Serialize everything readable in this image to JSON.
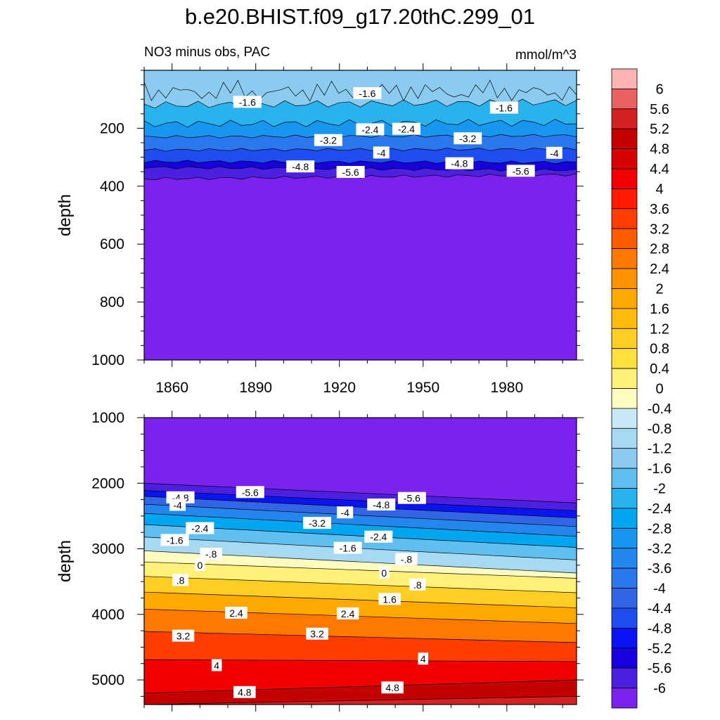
{
  "title": "b.e20.BHIST.f09_g17.20thC.299_01",
  "left_string": "NO3 minus obs, PAC",
  "right_string": "mmol/m^3",
  "chart_data": [
    {
      "type": "contour",
      "panel": "upper",
      "x": {
        "label": "",
        "range": [
          1850,
          2005
        ],
        "ticks": [
          1860,
          1890,
          1920,
          1950,
          1980
        ]
      },
      "y": {
        "label": "depth",
        "range": [
          0,
          1000
        ],
        "reversed": true,
        "ticks": [
          200,
          400,
          600,
          800,
          1000
        ]
      },
      "contour_levels": [
        -6,
        -5.6,
        -5.2,
        -4.8,
        -4.4,
        -4,
        -3.6,
        -3.2,
        -2.8,
        -2.4,
        -2,
        -1.6,
        -1.2,
        -0.8,
        -0.4,
        0,
        0.4,
        0.8,
        1.2,
        1.6,
        2,
        2.4,
        2.8,
        3.2,
        3.6,
        4,
        4.4,
        4.8,
        5.2,
        5.6,
        6
      ],
      "profile_depth_at": [
        {
          "level": -1.6,
          "depth_start": 120,
          "depth_end": 110
        },
        {
          "level": -2.4,
          "depth_start": 185,
          "depth_end": 180
        },
        {
          "level": -3.2,
          "depth_start": 230,
          "depth_end": 225
        },
        {
          "level": -4,
          "depth_start": 275,
          "depth_end": 272
        },
        {
          "level": -4.8,
          "depth_start": 315,
          "depth_end": 318
        },
        {
          "level": -5.6,
          "depth_start": 335,
          "depth_end": 345
        },
        {
          "level": -6,
          "depth_start": 375,
          "depth_end": 360
        }
      ],
      "contour_labels": [
        {
          "text": "-1.6",
          "x": 1887,
          "depth": 110
        },
        {
          "text": "-1.6",
          "x": 1930,
          "depth": 80
        },
        {
          "text": "-1.6",
          "x": 1979,
          "depth": 130
        },
        {
          "text": "-3.2",
          "x": 1916,
          "depth": 242
        },
        {
          "text": "-2.4",
          "x": 1931,
          "depth": 205
        },
        {
          "text": "-2.4",
          "x": 1944,
          "depth": 203
        },
        {
          "text": "-3.2",
          "x": 1966,
          "depth": 236
        },
        {
          "text": "-4",
          "x": 1935,
          "depth": 285
        },
        {
          "text": "-4",
          "x": 1997,
          "depth": 286
        },
        {
          "text": "-4.8",
          "x": 1906,
          "depth": 333
        },
        {
          "text": "-4.8",
          "x": 1963,
          "depth": 322
        },
        {
          "text": "-5.6",
          "x": 1924,
          "depth": 352
        },
        {
          "text": "-5.6",
          "x": 1985,
          "depth": 348
        }
      ]
    },
    {
      "type": "contour",
      "panel": "lower",
      "x": {
        "label": "",
        "range": [
          1850,
          2005
        ]
      },
      "y": {
        "label": "depth",
        "range": [
          1000,
          5375
        ],
        "reversed": true,
        "ticks": [
          1000,
          2000,
          3000,
          4000,
          5000
        ]
      },
      "profile_depth_at": [
        {
          "level": -6,
          "depth_start": 2000,
          "depth_end": 2300
        },
        {
          "level": -5.2,
          "depth_start": 2110,
          "depth_end": 2420
        },
        {
          "level": -4.4,
          "depth_start": 2200,
          "depth_end": 2530
        },
        {
          "level": -3.6,
          "depth_start": 2320,
          "depth_end": 2660
        },
        {
          "level": -2.8,
          "depth_start": 2460,
          "depth_end": 2810
        },
        {
          "level": -2,
          "depth_start": 2630,
          "depth_end": 2980
        },
        {
          "level": -1.2,
          "depth_start": 2820,
          "depth_end": 3170
        },
        {
          "level": -0.4,
          "depth_start": 3030,
          "depth_end": 3370
        },
        {
          "level": 0,
          "depth_start": 3200,
          "depth_end": 3450
        },
        {
          "level": 0.8,
          "depth_start": 3420,
          "depth_end": 3670
        },
        {
          "level": 1.6,
          "depth_start": 3660,
          "depth_end": 3900
        },
        {
          "level": 2.4,
          "depth_start": 3920,
          "depth_end": 4140
        },
        {
          "level": 3.2,
          "depth_start": 4260,
          "depth_end": 4430
        },
        {
          "level": 4,
          "depth_start": 4690,
          "depth_end": 4720
        },
        {
          "level": 4.8,
          "depth_start": 5200,
          "depth_end": 5000
        },
        {
          "level": 5.2,
          "depth_start": 5375,
          "depth_end": 5250
        }
      ],
      "contour_labels": [
        {
          "text": "-4.8",
          "x": 1863,
          "depth": 2220
        },
        {
          "text": "-5.6",
          "x": 1888,
          "depth": 2140
        },
        {
          "text": "-4",
          "x": 1862,
          "depth": 2335
        },
        {
          "text": "-4.8",
          "x": 1935,
          "depth": 2330
        },
        {
          "text": "-5.6",
          "x": 1946,
          "depth": 2230
        },
        {
          "text": "-4",
          "x": 1922,
          "depth": 2450
        },
        {
          "text": "-2.4",
          "x": 1870,
          "depth": 2690
        },
        {
          "text": "-3.2",
          "x": 1912,
          "depth": 2610
        },
        {
          "text": "-2.4",
          "x": 1934,
          "depth": 2820
        },
        {
          "text": "-1.6",
          "x": 1861,
          "depth": 2870
        },
        {
          "text": "-1.6",
          "x": 1923,
          "depth": 2990
        },
        {
          "text": "-.8",
          "x": 1874,
          "depth": 3080
        },
        {
          "text": "-.8",
          "x": 1944,
          "depth": 3160
        },
        {
          "text": "0",
          "x": 1870,
          "depth": 3250
        },
        {
          "text": "0",
          "x": 1936,
          "depth": 3370
        },
        {
          "text": ".8",
          "x": 1863,
          "depth": 3480
        },
        {
          "text": ".8",
          "x": 1948,
          "depth": 3550
        },
        {
          "text": "1.6",
          "x": 1938,
          "depth": 3770
        },
        {
          "text": "2.4",
          "x": 1883,
          "depth": 3980
        },
        {
          "text": "2.4",
          "x": 1923,
          "depth": 3990
        },
        {
          "text": "3.2",
          "x": 1864,
          "depth": 4330
        },
        {
          "text": "3.2",
          "x": 1912,
          "depth": 4300
        },
        {
          "text": "4",
          "x": 1876,
          "depth": 4780
        },
        {
          "text": "4",
          "x": 1950,
          "depth": 4680
        },
        {
          "text": "4.8",
          "x": 1886,
          "depth": 5190
        },
        {
          "text": "4.8",
          "x": 1939,
          "depth": 5120
        }
      ]
    }
  ],
  "colorbar": {
    "labels": [
      "6",
      "5.6",
      "5.2",
      "4.8",
      "4.4",
      "4",
      "3.6",
      "3.2",
      "2.8",
      "2.4",
      "2",
      "1.6",
      "1.2",
      "0.8",
      "0.4",
      "0",
      "-0.4",
      "-0.8",
      "-1.2",
      "-1.6",
      "-2",
      "-2.4",
      "-2.8",
      "-3.2",
      "-3.6",
      "-4",
      "-4.4",
      "-4.8",
      "-5.2",
      "-5.6",
      "-6"
    ],
    "colors": [
      "#ffb3b3",
      "#e86060",
      "#d52121",
      "#c40000",
      "#d90000",
      "#f20000",
      "#ff1a00",
      "#ff3d00",
      "#ff5a00",
      "#ff7800",
      "#ff9200",
      "#ffa800",
      "#ffbc0e",
      "#ffce24",
      "#ffe03c",
      "#fff07a",
      "#fffac0",
      "#c8e8f5",
      "#a7d9f2",
      "#8ccbf0",
      "#5fbff0",
      "#29b3ee",
      "#00a6ef",
      "#1797ef",
      "#2387ef",
      "#2b78ee",
      "#3366e6",
      "#1f4ef0",
      "#0a14f5",
      "#1600e0",
      "#4b20e0",
      "#7c22ee"
    ]
  },
  "field_colors_from_bottom": [
    "#7c22ee",
    "#4b20e0",
    "#1600e0",
    "#0a14f5",
    "#1f4ef0",
    "#3366e6",
    "#2b78ee",
    "#2387ef",
    "#1797ef",
    "#00a6ef",
    "#29b3ee",
    "#5fbff0",
    "#8ccbf0",
    "#a7d9f2",
    "#c8e8f5",
    "#fffac0",
    "#fff07a",
    "#ffe03c",
    "#ffce24",
    "#ffbc0e",
    "#ffa800",
    "#ff9200",
    "#ff7800",
    "#ff5a00",
    "#ff3d00",
    "#ff1a00",
    "#f20000",
    "#d90000",
    "#c40000",
    "#d52121"
  ]
}
